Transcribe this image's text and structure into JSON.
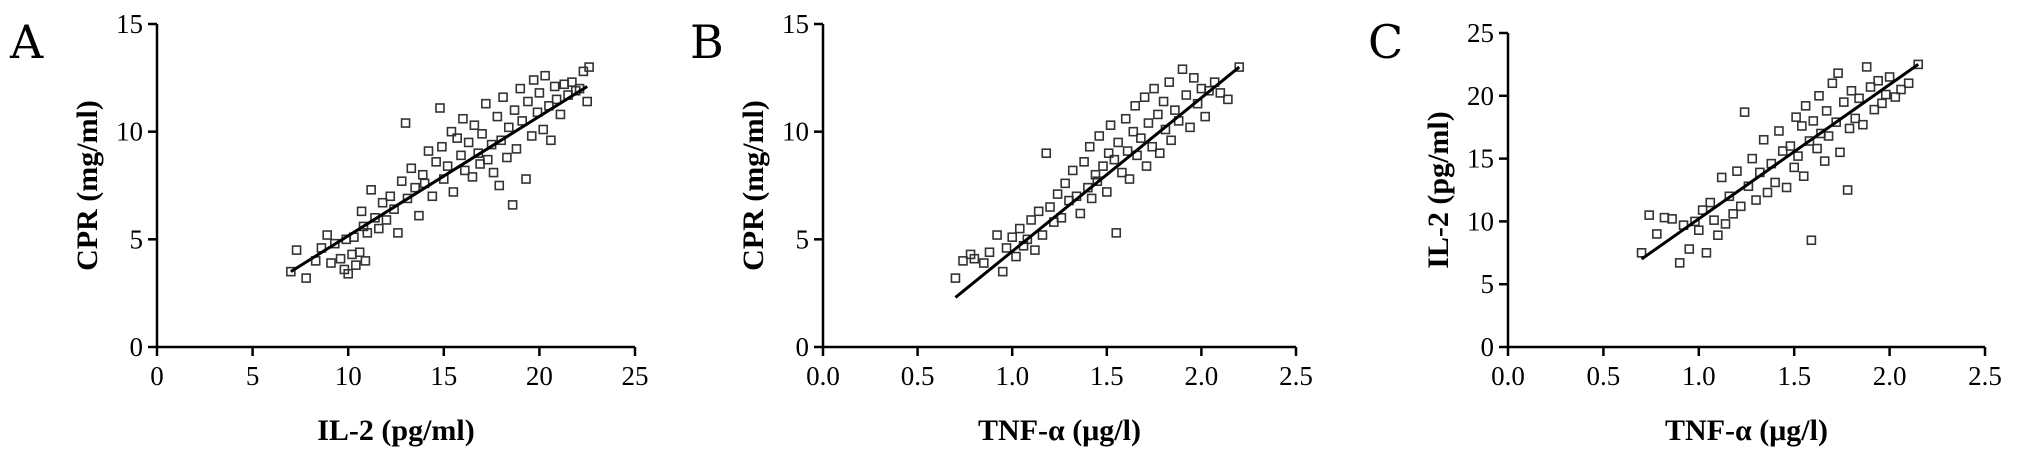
{
  "chart_data": [
    {
      "type": "scatter",
      "panel_label": "A",
      "xlabel": "IL-2 (pg/ml)",
      "ylabel": "CPR (mg/ml)",
      "xlim": [
        0,
        25
      ],
      "ylim": [
        0,
        15
      ],
      "xticks": [
        "0",
        "5",
        "10",
        "15",
        "20",
        "25"
      ],
      "yticks": [
        "0",
        "5",
        "10",
        "15"
      ],
      "fit_line": {
        "x": [
          7.0,
          22.5
        ],
        "y": [
          3.5,
          12.1
        ]
      },
      "grid": false,
      "points": [
        [
          7.0,
          3.5
        ],
        [
          7.3,
          4.5
        ],
        [
          7.8,
          3.2
        ],
        [
          8.3,
          4.0
        ],
        [
          8.6,
          4.6
        ],
        [
          8.9,
          5.2
        ],
        [
          9.1,
          3.9
        ],
        [
          9.3,
          4.8
        ],
        [
          9.6,
          4.1
        ],
        [
          9.8,
          3.6
        ],
        [
          9.9,
          5.0
        ],
        [
          10.0,
          3.4
        ],
        [
          10.2,
          4.3
        ],
        [
          10.3,
          5.1
        ],
        [
          10.4,
          3.8
        ],
        [
          10.6,
          4.4
        ],
        [
          10.7,
          6.3
        ],
        [
          10.8,
          5.6
        ],
        [
          10.9,
          4.0
        ],
        [
          11.0,
          5.3
        ],
        [
          11.2,
          7.3
        ],
        [
          11.4,
          6.0
        ],
        [
          11.6,
          5.5
        ],
        [
          11.8,
          6.7
        ],
        [
          12.0,
          5.9
        ],
        [
          12.2,
          7.0
        ],
        [
          12.4,
          6.4
        ],
        [
          12.6,
          5.3
        ],
        [
          12.8,
          7.7
        ],
        [
          13.0,
          10.4
        ],
        [
          13.1,
          6.9
        ],
        [
          13.3,
          8.3
        ],
        [
          13.5,
          7.4
        ],
        [
          13.7,
          6.1
        ],
        [
          13.9,
          8.0
        ],
        [
          14.0,
          7.6
        ],
        [
          14.2,
          9.1
        ],
        [
          14.4,
          7.0
        ],
        [
          14.6,
          8.6
        ],
        [
          14.8,
          11.1
        ],
        [
          14.9,
          9.3
        ],
        [
          15.0,
          7.8
        ],
        [
          15.2,
          8.4
        ],
        [
          15.4,
          10.0
        ],
        [
          15.5,
          7.2
        ],
        [
          15.7,
          9.7
        ],
        [
          15.9,
          8.9
        ],
        [
          16.0,
          10.6
        ],
        [
          16.1,
          8.2
        ],
        [
          16.3,
          9.5
        ],
        [
          16.5,
          7.9
        ],
        [
          16.6,
          10.3
        ],
        [
          16.8,
          9.0
        ],
        [
          16.9,
          8.5
        ],
        [
          17.0,
          9.9
        ],
        [
          17.2,
          11.3
        ],
        [
          17.3,
          8.7
        ],
        [
          17.5,
          9.4
        ],
        [
          17.6,
          8.1
        ],
        [
          17.8,
          10.7
        ],
        [
          17.9,
          7.5
        ],
        [
          18.0,
          9.6
        ],
        [
          18.1,
          11.6
        ],
        [
          18.3,
          8.8
        ],
        [
          18.4,
          10.2
        ],
        [
          18.6,
          6.6
        ],
        [
          18.7,
          11.0
        ],
        [
          18.8,
          9.2
        ],
        [
          19.0,
          12.0
        ],
        [
          19.1,
          10.5
        ],
        [
          19.3,
          7.8
        ],
        [
          19.4,
          11.4
        ],
        [
          19.6,
          9.8
        ],
        [
          19.7,
          12.4
        ],
        [
          19.9,
          10.9
        ],
        [
          20.0,
          11.8
        ],
        [
          20.2,
          10.1
        ],
        [
          20.3,
          12.6
        ],
        [
          20.5,
          11.2
        ],
        [
          20.6,
          9.6
        ],
        [
          20.8,
          12.1
        ],
        [
          20.9,
          11.5
        ],
        [
          21.1,
          10.8
        ],
        [
          21.3,
          12.2
        ],
        [
          21.5,
          11.7
        ],
        [
          21.7,
          12.3
        ],
        [
          21.9,
          11.9
        ],
        [
          22.1,
          12.0
        ],
        [
          22.3,
          12.8
        ],
        [
          22.5,
          11.4
        ],
        [
          22.6,
          13.0
        ]
      ]
    },
    {
      "type": "scatter",
      "panel_label": "B",
      "xlabel": "TNF-α (μg/l)",
      "ylabel": "CPR (mg/ml)",
      "xlim": [
        0,
        2.5
      ],
      "ylim": [
        0,
        15
      ],
      "xticks": [
        "0.0",
        "0.5",
        "1.0",
        "1.5",
        "2.0",
        "2.5"
      ],
      "yticks": [
        "0",
        "5",
        "10",
        "15"
      ],
      "fit_line": {
        "x": [
          0.7,
          2.2
        ],
        "y": [
          2.3,
          13.0
        ]
      },
      "grid": false,
      "points": [
        [
          0.7,
          3.2
        ],
        [
          0.74,
          4.0
        ],
        [
          0.78,
          4.3
        ],
        [
          0.8,
          4.1
        ],
        [
          0.85,
          3.9
        ],
        [
          0.88,
          4.4
        ],
        [
          0.92,
          5.2
        ],
        [
          0.95,
          3.5
        ],
        [
          0.97,
          4.6
        ],
        [
          1.0,
          5.1
        ],
        [
          1.02,
          4.2
        ],
        [
          1.04,
          5.5
        ],
        [
          1.06,
          4.7
        ],
        [
          1.08,
          5.0
        ],
        [
          1.1,
          5.9
        ],
        [
          1.12,
          4.5
        ],
        [
          1.14,
          6.3
        ],
        [
          1.16,
          5.2
        ],
        [
          1.18,
          9.0
        ],
        [
          1.2,
          6.5
        ],
        [
          1.22,
          5.8
        ],
        [
          1.24,
          7.1
        ],
        [
          1.26,
          6.0
        ],
        [
          1.28,
          7.6
        ],
        [
          1.3,
          6.8
        ],
        [
          1.32,
          8.2
        ],
        [
          1.34,
          7.0
        ],
        [
          1.36,
          6.2
        ],
        [
          1.38,
          8.6
        ],
        [
          1.4,
          7.4
        ],
        [
          1.41,
          9.3
        ],
        [
          1.42,
          6.9
        ],
        [
          1.44,
          8.0
        ],
        [
          1.45,
          7.7
        ],
        [
          1.46,
          9.8
        ],
        [
          1.48,
          8.4
        ],
        [
          1.5,
          7.2
        ],
        [
          1.51,
          9.0
        ],
        [
          1.52,
          10.3
        ],
        [
          1.54,
          8.7
        ],
        [
          1.55,
          5.3
        ],
        [
          1.56,
          9.5
        ],
        [
          1.58,
          8.1
        ],
        [
          1.6,
          10.6
        ],
        [
          1.61,
          9.1
        ],
        [
          1.62,
          7.8
        ],
        [
          1.64,
          10.0
        ],
        [
          1.65,
          11.2
        ],
        [
          1.66,
          8.9
        ],
        [
          1.68,
          9.7
        ],
        [
          1.7,
          11.6
        ],
        [
          1.71,
          8.4
        ],
        [
          1.72,
          10.4
        ],
        [
          1.74,
          9.3
        ],
        [
          1.75,
          12.0
        ],
        [
          1.77,
          10.8
        ],
        [
          1.78,
          9.0
        ],
        [
          1.8,
          11.4
        ],
        [
          1.81,
          10.1
        ],
        [
          1.83,
          12.3
        ],
        [
          1.84,
          9.6
        ],
        [
          1.86,
          11.0
        ],
        [
          1.88,
          10.5
        ],
        [
          1.9,
          12.9
        ],
        [
          1.92,
          11.7
        ],
        [
          1.94,
          10.2
        ],
        [
          1.96,
          12.5
        ],
        [
          1.98,
          11.3
        ],
        [
          2.0,
          12.0
        ],
        [
          2.02,
          10.7
        ],
        [
          2.04,
          11.9
        ],
        [
          2.07,
          12.3
        ],
        [
          2.1,
          11.8
        ],
        [
          2.14,
          11.5
        ],
        [
          2.2,
          13.0
        ]
      ]
    },
    {
      "type": "scatter",
      "panel_label": "C",
      "xlabel": "TNF-α (μg/l)",
      "ylabel": "IL-2 (pg/ml)",
      "xlim": [
        0,
        2.5
      ],
      "ylim": [
        0,
        25
      ],
      "xticks": [
        "0.0",
        "0.5",
        "1.0",
        "1.5",
        "2.0",
        "2.5"
      ],
      "yticks": [
        "0",
        "5",
        "10",
        "15",
        "20",
        "25"
      ],
      "fit_line": {
        "x": [
          0.7,
          2.15
        ],
        "y": [
          7.0,
          22.5
        ]
      },
      "grid": false,
      "points": [
        [
          0.7,
          7.5
        ],
        [
          0.74,
          10.5
        ],
        [
          0.78,
          9.0
        ],
        [
          0.82,
          10.3
        ],
        [
          0.86,
          10.2
        ],
        [
          0.9,
          6.7
        ],
        [
          0.92,
          9.7
        ],
        [
          0.95,
          7.8
        ],
        [
          0.98,
          10.0
        ],
        [
          1.0,
          9.3
        ],
        [
          1.02,
          10.9
        ],
        [
          1.04,
          7.5
        ],
        [
          1.06,
          11.5
        ],
        [
          1.08,
          10.1
        ],
        [
          1.1,
          8.9
        ],
        [
          1.12,
          13.5
        ],
        [
          1.14,
          9.8
        ],
        [
          1.16,
          12.0
        ],
        [
          1.18,
          10.6
        ],
        [
          1.2,
          14.0
        ],
        [
          1.22,
          11.2
        ],
        [
          1.24,
          18.7
        ],
        [
          1.26,
          12.8
        ],
        [
          1.28,
          15.0
        ],
        [
          1.3,
          11.7
        ],
        [
          1.32,
          13.9
        ],
        [
          1.34,
          16.5
        ],
        [
          1.36,
          12.3
        ],
        [
          1.38,
          14.6
        ],
        [
          1.4,
          13.1
        ],
        [
          1.42,
          17.2
        ],
        [
          1.44,
          15.6
        ],
        [
          1.46,
          12.7
        ],
        [
          1.48,
          16.0
        ],
        [
          1.5,
          14.3
        ],
        [
          1.51,
          18.3
        ],
        [
          1.52,
          15.2
        ],
        [
          1.54,
          17.6
        ],
        [
          1.55,
          13.6
        ],
        [
          1.56,
          19.2
        ],
        [
          1.58,
          16.4
        ],
        [
          1.59,
          8.5
        ],
        [
          1.6,
          18.0
        ],
        [
          1.62,
          15.8
        ],
        [
          1.63,
          20.0
        ],
        [
          1.64,
          17.0
        ],
        [
          1.66,
          14.8
        ],
        [
          1.67,
          18.8
        ],
        [
          1.68,
          16.8
        ],
        [
          1.7,
          21.0
        ],
        [
          1.72,
          17.9
        ],
        [
          1.73,
          21.8
        ],
        [
          1.74,
          15.5
        ],
        [
          1.76,
          19.5
        ],
        [
          1.78,
          12.5
        ],
        [
          1.79,
          17.4
        ],
        [
          1.8,
          20.4
        ],
        [
          1.82,
          18.2
        ],
        [
          1.84,
          19.8
        ],
        [
          1.86,
          17.7
        ],
        [
          1.88,
          22.3
        ],
        [
          1.9,
          20.7
        ],
        [
          1.92,
          18.9
        ],
        [
          1.94,
          21.2
        ],
        [
          1.96,
          19.4
        ],
        [
          1.98,
          20.1
        ],
        [
          2.0,
          21.5
        ],
        [
          2.03,
          19.9
        ],
        [
          2.06,
          20.5
        ],
        [
          2.1,
          21.0
        ],
        [
          2.15,
          22.5
        ]
      ]
    }
  ]
}
